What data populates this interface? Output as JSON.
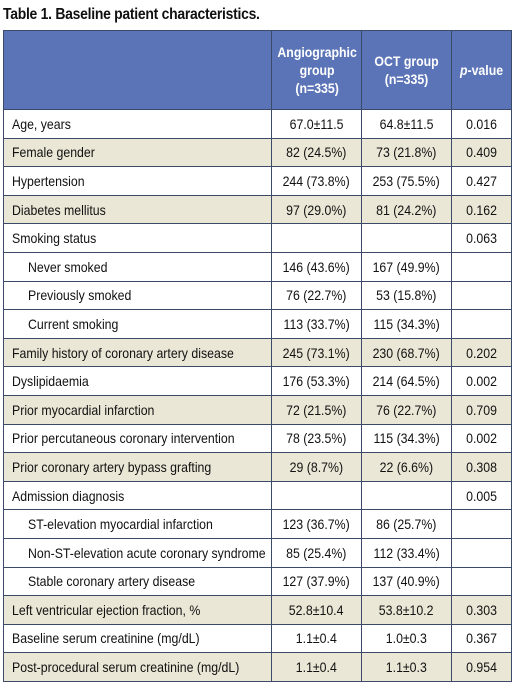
{
  "caption": "Table 1. Baseline patient characteristics.",
  "headers": {
    "label": "",
    "angio_line1": "Angiographic",
    "angio_line2": "group",
    "angio_line3": "(n=335)",
    "oct_line1": "OCT group",
    "oct_line2": "(n=335)",
    "p_italic": "p",
    "p_rest": "-value"
  },
  "rows": [
    {
      "label": "Age, years",
      "angio": "67.0±11.5",
      "oct": "64.8±11.5",
      "p": "0.016",
      "shaded": false,
      "sub": false
    },
    {
      "label": "Female gender",
      "angio": "82 (24.5%)",
      "oct": "73 (21.8%)",
      "p": "0.409",
      "shaded": true,
      "sub": false
    },
    {
      "label": "Hypertension",
      "angio": "244 (73.8%)",
      "oct": "253 (75.5%)",
      "p": "0.427",
      "shaded": false,
      "sub": false
    },
    {
      "label": "Diabetes mellitus",
      "angio": "97 (29.0%)",
      "oct": "81 (24.2%)",
      "p": "0.162",
      "shaded": true,
      "sub": false
    },
    {
      "label": "Smoking status",
      "angio": "",
      "oct": "",
      "p": "0.063",
      "shaded": false,
      "sub": false
    },
    {
      "label": "Never smoked",
      "angio": "146 (43.6%)",
      "oct": "167 (49.9%)",
      "p": "",
      "shaded": false,
      "sub": true
    },
    {
      "label": "Previously smoked",
      "angio": "76 (22.7%)",
      "oct": "53 (15.8%)",
      "p": "",
      "shaded": false,
      "sub": true
    },
    {
      "label": "Current smoking",
      "angio": "113 (33.7%)",
      "oct": "115 (34.3%)",
      "p": "",
      "shaded": false,
      "sub": true
    },
    {
      "label": "Family history of coronary artery disease",
      "angio": "245 (73.1%)",
      "oct": "230 (68.7%)",
      "p": "0.202",
      "shaded": true,
      "sub": false
    },
    {
      "label": "Dyslipidaemia",
      "angio": "176 (53.3%)",
      "oct": "214 (64.5%)",
      "p": "0.002",
      "shaded": false,
      "sub": false
    },
    {
      "label": "Prior myocardial infarction",
      "angio": "72 (21.5%)",
      "oct": "76 (22.7%)",
      "p": "0.709",
      "shaded": true,
      "sub": false
    },
    {
      "label": "Prior percutaneous coronary intervention",
      "angio": "78 (23.5%)",
      "oct": "115 (34.3%)",
      "p": "0.002",
      "shaded": false,
      "sub": false
    },
    {
      "label": "Prior coronary artery bypass grafting",
      "angio": "29 (8.7%)",
      "oct": "22 (6.6%)",
      "p": "0.308",
      "shaded": true,
      "sub": false
    },
    {
      "label": "Admission diagnosis",
      "angio": "",
      "oct": "",
      "p": "0.005",
      "shaded": false,
      "sub": false
    },
    {
      "label": "ST-elevation myocardial infarction",
      "angio": "123 (36.7%)",
      "oct": "86 (25.7%)",
      "p": "",
      "shaded": false,
      "sub": true
    },
    {
      "label": "Non-ST-elevation acute coronary syndrome",
      "angio": "85 (25.4%)",
      "oct": "112 (33.4%)",
      "p": "",
      "shaded": false,
      "sub": true
    },
    {
      "label": "Stable coronary artery disease",
      "angio": "127 (37.9%)",
      "oct": "137 (40.9%)",
      "p": "",
      "shaded": false,
      "sub": true
    },
    {
      "label": "Left ventricular ejection fraction, %",
      "angio": "52.8±10.4",
      "oct": "53.8±10.2",
      "p": "0.303",
      "shaded": true,
      "sub": false
    },
    {
      "label": "Baseline serum creatinine (mg/dL)",
      "angio": "1.1±0.4",
      "oct": "1.0±0.3",
      "p": "0.367",
      "shaded": false,
      "sub": false
    },
    {
      "label": "Post-procedural serum creatinine (mg/dL)",
      "angio": "1.1±0.4",
      "oct": "1.1±0.3",
      "p": "0.954",
      "shaded": true,
      "sub": false
    }
  ],
  "colors": {
    "header_bg": "#5b74b8",
    "shade_bg": "#ebe7d6",
    "border": "#3c4a6a"
  }
}
